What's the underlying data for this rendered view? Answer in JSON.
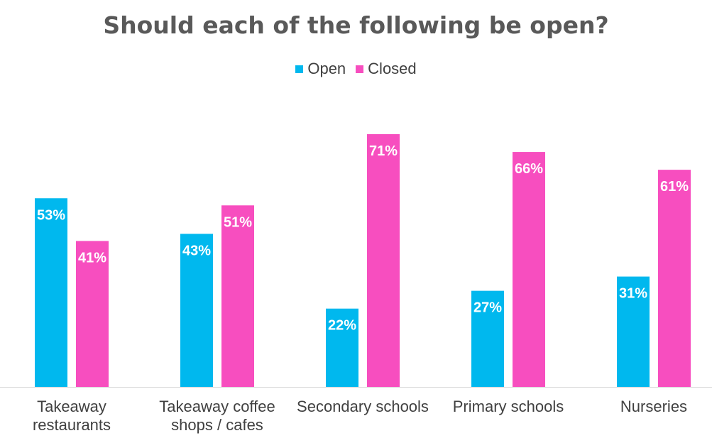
{
  "chart_data": {
    "type": "bar",
    "title": "Should each of the following be open?",
    "categories": [
      [
        "Takeaway",
        "restaurants"
      ],
      [
        "Takeaway coffee",
        "shops / cafes"
      ],
      [
        "Secondary schools"
      ],
      [
        "Primary schools"
      ],
      [
        "Nurseries"
      ]
    ],
    "series": [
      {
        "name": "Open",
        "color": "#00B8EE",
        "values": [
          53,
          43,
          22,
          27,
          31
        ],
        "labels": [
          "53%",
          "43%",
          "22%",
          "27%",
          "31%"
        ]
      },
      {
        "name": "Closed",
        "color": "#F74EBF",
        "values": [
          41,
          51,
          71,
          66,
          61
        ],
        "labels": [
          "41%",
          "51%",
          "71%",
          "66%",
          "61%"
        ]
      }
    ],
    "ylim": [
      0,
      71
    ],
    "xlabel": "",
    "ylabel": "",
    "grid": false,
    "legend_position": "top"
  }
}
